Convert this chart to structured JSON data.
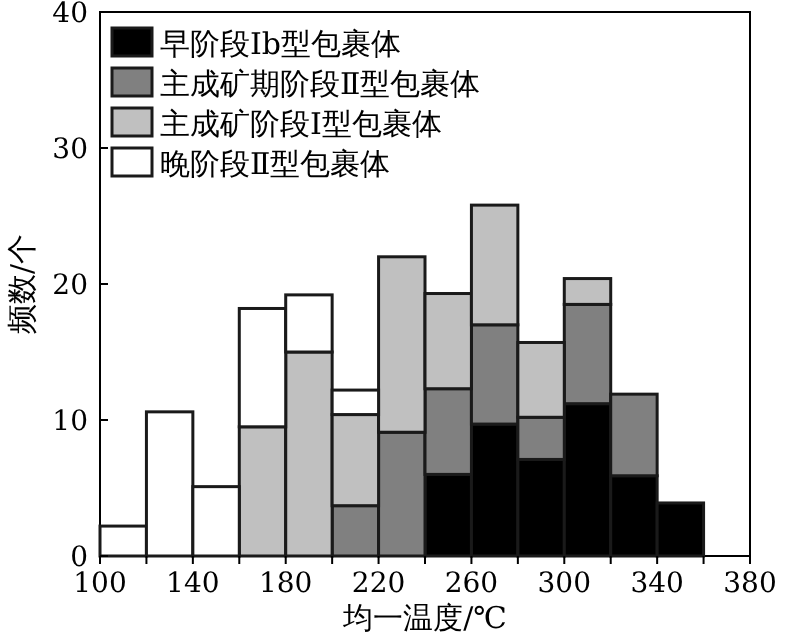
{
  "chart_data": {
    "type": "bar",
    "xlabel": "均一温度/℃",
    "ylabel": "频数/个",
    "x": [
      110,
      130,
      150,
      170,
      190,
      210,
      230,
      250,
      270,
      290,
      310,
      330,
      350
    ],
    "stacked": true,
    "legend": "top left",
    "series": [
      {
        "name": "早阶段Ⅰb型包裹体",
        "color": "#000000",
        "values": [
          0,
          0,
          0,
          0,
          0,
          0,
          0,
          6,
          9.7,
          7.1,
          11.2,
          5.9,
          3.9
        ]
      },
      {
        "name": "主成矿期阶段Ⅱ型包裹体",
        "color": "#808080",
        "values": [
          0,
          0,
          0,
          0,
          0,
          3.7,
          9.1,
          6.3,
          7.3,
          3.1,
          7.3,
          6,
          0
        ]
      },
      {
        "name": "主成矿阶段Ⅰ型包裹体",
        "color": "#c0c0c0",
        "values": [
          0,
          0,
          0,
          9.5,
          15,
          6.7,
          12.9,
          7,
          8.8,
          5.5,
          1.9,
          0,
          0
        ]
      },
      {
        "name": "晚阶段Ⅱ型包裹体",
        "color": "#ffffff",
        "values": [
          2.2,
          10.6,
          5.1,
          8.7,
          4.2,
          1.8,
          0,
          0,
          0,
          0,
          0,
          0,
          0
        ]
      }
    ],
    "xlim": [
      100,
      380
    ],
    "xticks": [
      100,
      {
        "value": 120,
        "label": null
      },
      140,
      {
        "value": 160,
        "label": null
      },
      180,
      {
        "value": 200,
        "label": null
      },
      220,
      {
        "value": 240,
        "label": null
      },
      260,
      {
        "value": 280,
        "label": null
      },
      300,
      {
        "value": 320,
        "label": null
      },
      340,
      {
        "value": 360,
        "label": null
      },
      380
    ],
    "ylim": [
      0,
      40
    ],
    "yticks": [
      0,
      10,
      20,
      30,
      40
    ]
  }
}
